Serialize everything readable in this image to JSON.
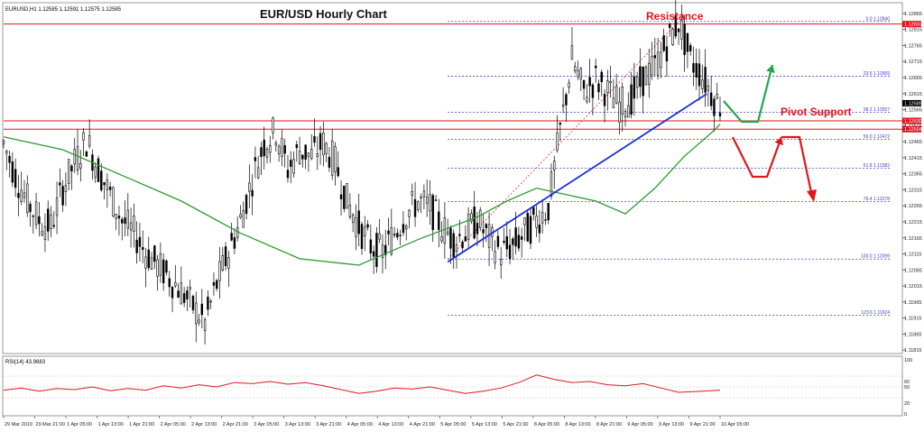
{
  "header": {
    "symbol_info": "EURUSD,H1  1.12585 1.12591 1.12575 1.12585",
    "title": "EUR/USD Hourly Chart"
  },
  "annotations": {
    "resistance": "Resistance",
    "pivot_support": "Pivot Support"
  },
  "rsi": {
    "label": "RSI(14) 43.9683",
    "ticks": [
      {
        "value": 100,
        "label": "100"
      },
      {
        "value": 60,
        "label": "60"
      },
      {
        "value": 50,
        "label": "50"
      },
      {
        "value": 20,
        "label": "20"
      },
      {
        "value": 0,
        "label": "0"
      }
    ]
  },
  "colors": {
    "candle": "#000000",
    "ma": "#2e9a2e",
    "horizontal_lines": "#e0161c",
    "trendline": "#1730d8",
    "fib": "#3c3cc8",
    "rsi_line": "#e0161c",
    "arrow_up": "#22a84a",
    "arrow_down": "#e0161c",
    "annotation_text": "#e0161c"
  },
  "chart_data": {
    "type": "candlestick",
    "title": "EUR/USD Hourly Chart",
    "ylim": [
      1.1181,
      1.1289
    ],
    "y_ticks": [
      "1.12865",
      "1.12815",
      "1.12765",
      "1.12715",
      "1.12665",
      "1.12615",
      "1.12565",
      "1.12515",
      "1.12465",
      "1.12415",
      "1.12365",
      "1.12315",
      "1.12265",
      "1.12215",
      "1.12165",
      "1.12115",
      "1.12065",
      "1.12015",
      "1.11965",
      "1.11915",
      "1.11865",
      "1.11815"
    ],
    "x_ticks": [
      "29 Mar 2019",
      "29 Mar 21:00",
      "1 Apr 05:00",
      "1 Apr 13:00",
      "1 Apr 21:00",
      "2 Apr 05:00",
      "2 Apr 13:00",
      "2 Apr 21:00",
      "3 Apr 05:00",
      "3 Apr 13:00",
      "3 Apr 21:00",
      "4 Apr 05:00",
      "4 Apr 13:00",
      "4 Apr 21:00",
      "5 Apr 05:00",
      "5 Apr 13:00",
      "5 Apr 21:00",
      "8 Apr 05:00",
      "8 Apr 13:00",
      "8 Apr 21:00",
      "9 Apr 05:00",
      "9 Apr 13:00",
      "9 Apr 21:00",
      "10 Apr 05:00"
    ],
    "price_path": [
      [
        0,
        1.1246
      ],
      [
        4,
        1.1236
      ],
      [
        8,
        1.1228
      ],
      [
        12,
        1.1222
      ],
      [
        16,
        1.122
      ],
      [
        20,
        1.1232
      ],
      [
        24,
        1.124
      ],
      [
        28,
        1.1247
      ],
      [
        32,
        1.1238
      ],
      [
        36,
        1.123
      ],
      [
        40,
        1.1222
      ],
      [
        44,
        1.1218
      ],
      [
        48,
        1.1212
      ],
      [
        52,
        1.1208
      ],
      [
        56,
        1.1204
      ],
      [
        60,
        1.12
      ],
      [
        64,
        1.1195
      ],
      [
        68,
        1.119
      ],
      [
        72,
        1.1202
      ],
      [
        76,
        1.1212
      ],
      [
        80,
        1.1222
      ],
      [
        84,
        1.1235
      ],
      [
        88,
        1.1246
      ],
      [
        92,
        1.125
      ],
      [
        96,
        1.1238
      ],
      [
        100,
        1.1244
      ],
      [
        104,
        1.1242
      ],
      [
        108,
        1.1246
      ],
      [
        112,
        1.124
      ],
      [
        116,
        1.1228
      ],
      [
        120,
        1.122
      ],
      [
        124,
        1.1214
      ],
      [
        128,
        1.1212
      ],
      [
        132,
        1.1218
      ],
      [
        136,
        1.1224
      ],
      [
        140,
        1.1228
      ],
      [
        144,
        1.1226
      ],
      [
        148,
        1.122
      ],
      [
        152,
        1.1216
      ],
      [
        156,
        1.1218
      ],
      [
        160,
        1.1222
      ],
      [
        164,
        1.1216
      ],
      [
        168,
        1.1212
      ],
      [
        172,
        1.1214
      ],
      [
        176,
        1.1218
      ],
      [
        180,
        1.1222
      ],
      [
        184,
        1.1226
      ],
      [
        188,
        1.125
      ],
      [
        192,
        1.1272
      ],
      [
        196,
        1.1262
      ],
      [
        200,
        1.1266
      ],
      [
        204,
        1.1262
      ],
      [
        208,
        1.1258
      ],
      [
        212,
        1.126
      ],
      [
        216,
        1.1266
      ],
      [
        220,
        1.127
      ],
      [
        224,
        1.1277
      ],
      [
        228,
        1.1284
      ],
      [
        232,
        1.1272
      ],
      [
        236,
        1.1267
      ],
      [
        240,
        1.126
      ],
      [
        242,
        1.1258
      ]
    ],
    "ma_path": [
      [
        0,
        1.1248
      ],
      [
        20,
        1.1244
      ],
      [
        40,
        1.1236
      ],
      [
        60,
        1.1228
      ],
      [
        80,
        1.1218
      ],
      [
        100,
        1.121
      ],
      [
        120,
        1.1208
      ],
      [
        140,
        1.1216
      ],
      [
        160,
        1.1223
      ],
      [
        170,
        1.1228
      ],
      [
        180,
        1.1232
      ],
      [
        190,
        1.123
      ],
      [
        200,
        1.1228
      ],
      [
        210,
        1.1224
      ],
      [
        220,
        1.1232
      ],
      [
        230,
        1.1242
      ],
      [
        240,
        1.125
      ],
      [
        242,
        1.1252
      ]
    ],
    "horizontal_levels": [
      {
        "name": "resistance",
        "value": 1.12832
      },
      {
        "name": "pivot-upper",
        "value": 1.1253
      },
      {
        "name": "pivot-lower",
        "value": 1.12504
      }
    ],
    "current_price": {
      "value": 1.12585,
      "label": "1.12585"
    },
    "level_labels": [
      {
        "value": 1.12832,
        "label": "1.12832"
      },
      {
        "value": 1.1253,
        "label": "1.12530"
      },
      {
        "value": 1.12504,
        "label": "1.12504"
      }
    ],
    "fibonacci": {
      "x_start": 150,
      "x_end": 242,
      "levels": [
        {
          "label": "0.0 1.12840",
          "value": 1.1284
        },
        {
          "label": "23.6 1.12669",
          "value": 1.12669
        },
        {
          "label": "38.2 1.12557",
          "value": 1.12557
        },
        {
          "label": "50.0 1.12472",
          "value": 1.12472
        },
        {
          "label": "61.8 1.12382",
          "value": 1.12382
        },
        {
          "label": "76.4 1.12278",
          "value": 1.12278
        },
        {
          "label": "100.0 1.12099",
          "value": 1.12099
        },
        {
          "label": "123.6 1.11924",
          "value": 1.11924
        }
      ]
    },
    "trendline": {
      "start": [
        150,
        1.1209
      ],
      "end": [
        229,
        1.12575
      ]
    },
    "rsi_series": [
      [
        0,
        44
      ],
      [
        6,
        48
      ],
      [
        12,
        42
      ],
      [
        18,
        47
      ],
      [
        24,
        45
      ],
      [
        30,
        50
      ],
      [
        36,
        43
      ],
      [
        42,
        47
      ],
      [
        48,
        44
      ],
      [
        54,
        52
      ],
      [
        60,
        48
      ],
      [
        66,
        54
      ],
      [
        72,
        50
      ],
      [
        78,
        58
      ],
      [
        84,
        56
      ],
      [
        90,
        60
      ],
      [
        96,
        55
      ],
      [
        102,
        58
      ],
      [
        108,
        52
      ],
      [
        114,
        45
      ],
      [
        120,
        38
      ],
      [
        126,
        42
      ],
      [
        132,
        48
      ],
      [
        138,
        46
      ],
      [
        144,
        50
      ],
      [
        150,
        44
      ],
      [
        156,
        38
      ],
      [
        162,
        42
      ],
      [
        168,
        48
      ],
      [
        174,
        58
      ],
      [
        180,
        72
      ],
      [
        186,
        64
      ],
      [
        192,
        58
      ],
      [
        198,
        60
      ],
      [
        204,
        54
      ],
      [
        210,
        52
      ],
      [
        216,
        56
      ],
      [
        222,
        48
      ],
      [
        228,
        40
      ],
      [
        236,
        42
      ],
      [
        242,
        44
      ]
    ]
  }
}
